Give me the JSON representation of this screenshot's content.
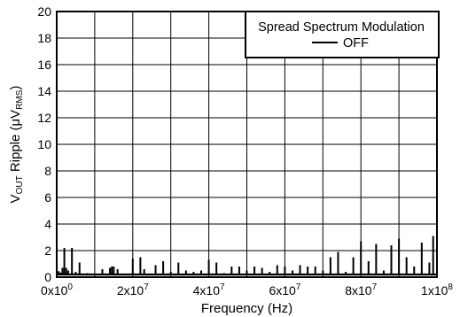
{
  "chart_data": {
    "type": "line",
    "title": "",
    "xlabel": "Frequency (Hz)",
    "ylabel": {
      "prefix": "V",
      "prefix_sub": "OUT",
      "middle": " Ripple (",
      "mu": "μ",
      "unit": "V",
      "unit_sub": "RMS",
      "suffix": ")"
    },
    "xlim": [
      0,
      100000000
    ],
    "ylim": [
      0,
      20
    ],
    "grid": true,
    "x_ticks": [
      {
        "value": 0,
        "mant": "0x10",
        "exp": "0"
      },
      {
        "value": 20000000,
        "mant": "2x10",
        "exp": "7"
      },
      {
        "value": 40000000,
        "mant": "4x10",
        "exp": "7"
      },
      {
        "value": 60000000,
        "mant": "6x10",
        "exp": "7"
      },
      {
        "value": 80000000,
        "mant": "8x10",
        "exp": "7"
      },
      {
        "value": 100000000,
        "mant": "1x10",
        "exp": "8"
      }
    ],
    "x_minor_grid_step": 10000000,
    "y_ticks": [
      0,
      2,
      4,
      6,
      8,
      10,
      12,
      14,
      16,
      18,
      20
    ],
    "legend": {
      "title": "Spread Spectrum Modulation",
      "placement": "top-right",
      "entries": [
        {
          "label": "OFF",
          "color": "#000000"
        }
      ]
    },
    "series": [
      {
        "name": "OFF",
        "color": "#000000",
        "baseline": 0.2,
        "x": [
          0,
          500000,
          1000000,
          1500000,
          2000000,
          2500000,
          3000000,
          4000000,
          5000000,
          6000000,
          8000000,
          12000000,
          14000000,
          14500000,
          15000000,
          16000000,
          20000000,
          22000000,
          23000000,
          26000000,
          28000000,
          30000000,
          32000000,
          34000000,
          36000000,
          38000000,
          40000000,
          42000000,
          44000000,
          46000000,
          48000000,
          50000000,
          52000000,
          54000000,
          56000000,
          58000000,
          60000000,
          62000000,
          64000000,
          66000000,
          68000000,
          70000000,
          72000000,
          74000000,
          76000000,
          78000000,
          80000000,
          82000000,
          84000000,
          86000000,
          88000000,
          90000000,
          92000000,
          94000000,
          96000000,
          98000000,
          99000000,
          100000000
        ],
        "y": [
          0.55,
          0.45,
          0.35,
          0.7,
          2.2,
          0.7,
          0.5,
          2.2,
          0.4,
          1.1,
          0.3,
          0.6,
          0.7,
          0.8,
          0.8,
          0.6,
          1.4,
          1.5,
          0.6,
          0.9,
          1.2,
          0.4,
          1.1,
          0.5,
          0.4,
          0.5,
          1.3,
          1.1,
          0.3,
          0.8,
          0.8,
          0.5,
          0.8,
          0.7,
          0.4,
          0.9,
          0.8,
          0.5,
          0.9,
          0.8,
          0.8,
          0.5,
          1.5,
          1.9,
          0.4,
          1.5,
          2.7,
          1.2,
          2.5,
          0.5,
          2.4,
          2.9,
          1.5,
          0.8,
          2.6,
          1.1,
          3.1,
          0.4
        ]
      }
    ]
  }
}
